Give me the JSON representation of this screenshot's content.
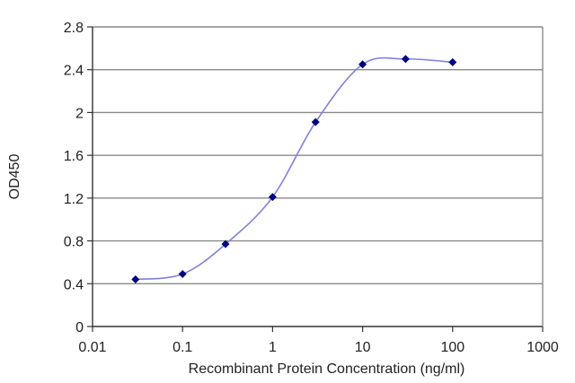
{
  "chart_data": {
    "type": "line",
    "xlabel": "Recombinant Protein Concentration (ng/ml)",
    "ylabel": "OD450",
    "x_scale": "log",
    "xlim": [
      0.01,
      1000
    ],
    "ylim": [
      0,
      2.8
    ],
    "grid": "horizontal",
    "legend": "none",
    "x_ticks": [
      "0.01",
      "0.1",
      "1",
      "10",
      "100",
      "1000"
    ],
    "y_ticks": [
      "0",
      "0.4",
      "0.8",
      "1.2",
      "1.6",
      "2",
      "2.4",
      "2.8"
    ],
    "series": [
      {
        "color": "#8080e0",
        "marker_color": "#000080",
        "points": [
          {
            "x": 0.03,
            "y": 0.44
          },
          {
            "x": 0.1,
            "y": 0.49
          },
          {
            "x": 0.3,
            "y": 0.77
          },
          {
            "x": 1,
            "y": 1.21
          },
          {
            "x": 3,
            "y": 1.91
          },
          {
            "x": 10,
            "y": 2.45
          },
          {
            "x": 30,
            "y": 2.5
          },
          {
            "x": 100,
            "y": 2.47
          }
        ]
      }
    ]
  }
}
